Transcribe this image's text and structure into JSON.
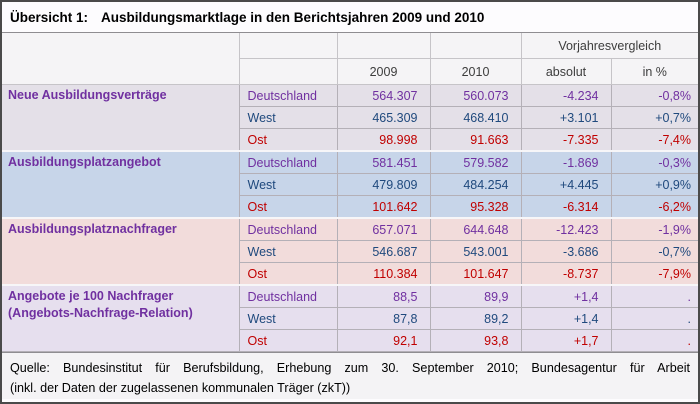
{
  "title": {
    "prefix": "Übersicht 1:",
    "text": "Ausbildungsmarktlage in den Berichtsjahren 2009 und 2010"
  },
  "header": {
    "vorjahresvergleich": "Vorjahresvergleich",
    "col_2009": "2009",
    "col_2010": "2010",
    "absolut": "absolut",
    "in_percent": "in %"
  },
  "groups": [
    {
      "label": "Neue Ausbildungsverträge",
      "label2": "",
      "rows": [
        {
          "region": "Deutschland",
          "v2009": "564.307",
          "v2010": "560.073",
          "absolut": "-4.234",
          "percent": "-0,8%"
        },
        {
          "region": "West",
          "v2009": "465.309",
          "v2010": "468.410",
          "absolut": "+3.101",
          "percent": "+0,7%"
        },
        {
          "region": "Ost",
          "v2009": "98.998",
          "v2010": "91.663",
          "absolut": "-7.335",
          "percent": "-7,4%"
        }
      ]
    },
    {
      "label": "Ausbildungsplatzangebot",
      "label2": "",
      "rows": [
        {
          "region": "Deutschland",
          "v2009": "581.451",
          "v2010": "579.582",
          "absolut": "-1.869",
          "percent": "-0,3%"
        },
        {
          "region": "West",
          "v2009": "479.809",
          "v2010": "484.254",
          "absolut": "+4.445",
          "percent": "+0,9%"
        },
        {
          "region": "Ost",
          "v2009": "101.642",
          "v2010": "95.328",
          "absolut": "-6.314",
          "percent": "-6,2%"
        }
      ]
    },
    {
      "label": "Ausbildungsplatznachfrager",
      "label2": "",
      "rows": [
        {
          "region": "Deutschland",
          "v2009": "657.071",
          "v2010": "644.648",
          "absolut": "-12.423",
          "percent": "-1,9%"
        },
        {
          "region": "West",
          "v2009": "546.687",
          "v2010": "543.001",
          "absolut": "-3.686",
          "percent": "-0,7%"
        },
        {
          "region": "Ost",
          "v2009": "110.384",
          "v2010": "101.647",
          "absolut": "-8.737",
          "percent": "-7,9%"
        }
      ]
    },
    {
      "label": "Angebote je 100 Nachfrager",
      "label2": "(Angebots-Nachfrage-Relation)",
      "rows": [
        {
          "region": "Deutschland",
          "v2009": "88,5",
          "v2010": "89,9",
          "absolut": "+1,4",
          "percent": "."
        },
        {
          "region": "West",
          "v2009": "87,8",
          "v2010": "89,2",
          "absolut": "+1,4",
          "percent": "."
        },
        {
          "region": "Ost",
          "v2009": "92,1",
          "v2010": "93,8",
          "absolut": "+1,7",
          "percent": "."
        }
      ]
    }
  ],
  "footer": {
    "line1": "Quelle: Bundesinstitut für Berufsbildung, Erhebung zum 30. September 2010; Bundesagentur für Arbeit",
    "line2": "(inkl. der Daten der zugelassenen kommunalen Träger (zkT))"
  },
  "colors": {
    "purple": "#7030a0",
    "navy": "#1f497d",
    "red": "#c00000",
    "band1": "#e4e0e8",
    "band2": "#c7d5e9",
    "band3": "#f2dcdb",
    "band4": "#e6dfee",
    "header_text": "#3d3d3d"
  }
}
